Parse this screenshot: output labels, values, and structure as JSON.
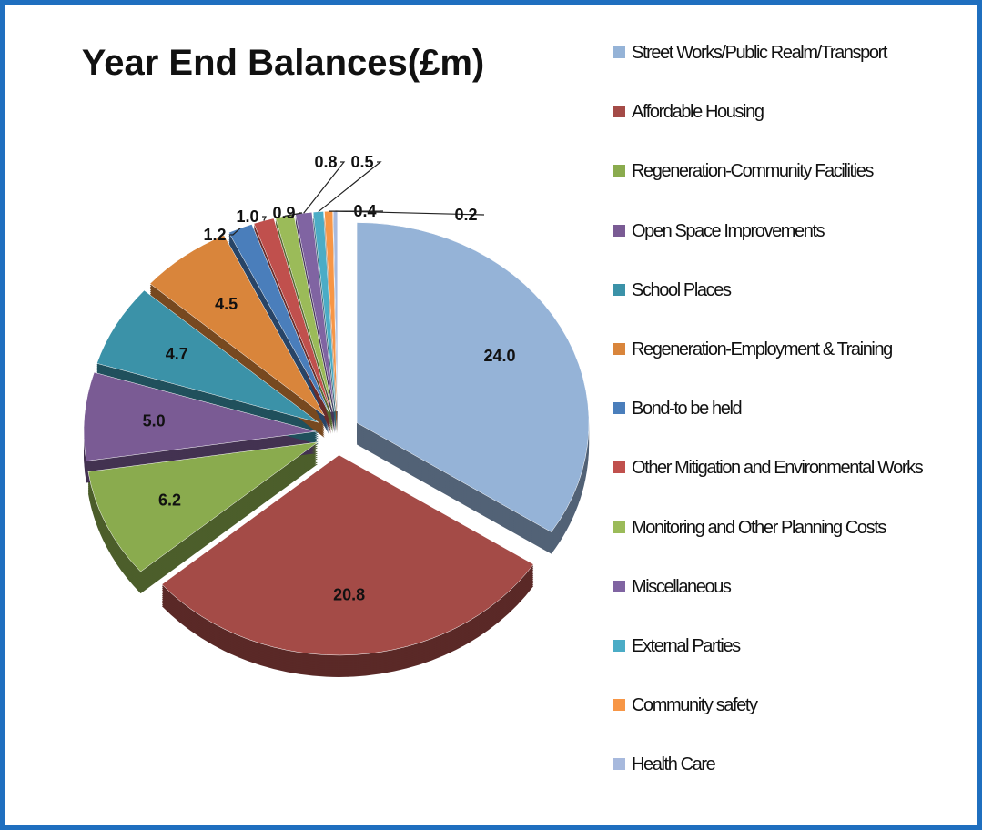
{
  "chart_data": {
    "type": "pie",
    "title": "Year End Balances(£m)",
    "categories": [
      "Street Works/Public Realm/Transport",
      "Affordable Housing",
      "Regeneration-Community Facilities",
      "Open Space Improvements",
      "School Places",
      "Regeneration-Employment & Training",
      "Bond-to be held",
      "Other Mitigation and Environmental Works",
      "Monitoring and Other Planning Costs",
      "Miscellaneous",
      "External Parties",
      "Community safety",
      "Health Care"
    ],
    "values": [
      24.0,
      20.8,
      6.2,
      5.0,
      4.7,
      4.5,
      1.2,
      1.0,
      0.9,
      0.8,
      0.5,
      0.4,
      0.2
    ],
    "value_labels": [
      "24.0",
      "20.8",
      "6.2",
      "5.0",
      "4.7",
      "4.5",
      "1.2",
      "1.0",
      "0.9",
      "0.8",
      "0.5",
      "0.4",
      "0.2"
    ],
    "colors": [
      "#95b3d7",
      "#a44b47",
      "#8aab4e",
      "#7a5b94",
      "#3b92a8",
      "#d9853b",
      "#4a7ebb",
      "#c0504d",
      "#9bbb59",
      "#8064a2",
      "#4bacc6",
      "#f79646",
      "#a7b9dd"
    ]
  }
}
